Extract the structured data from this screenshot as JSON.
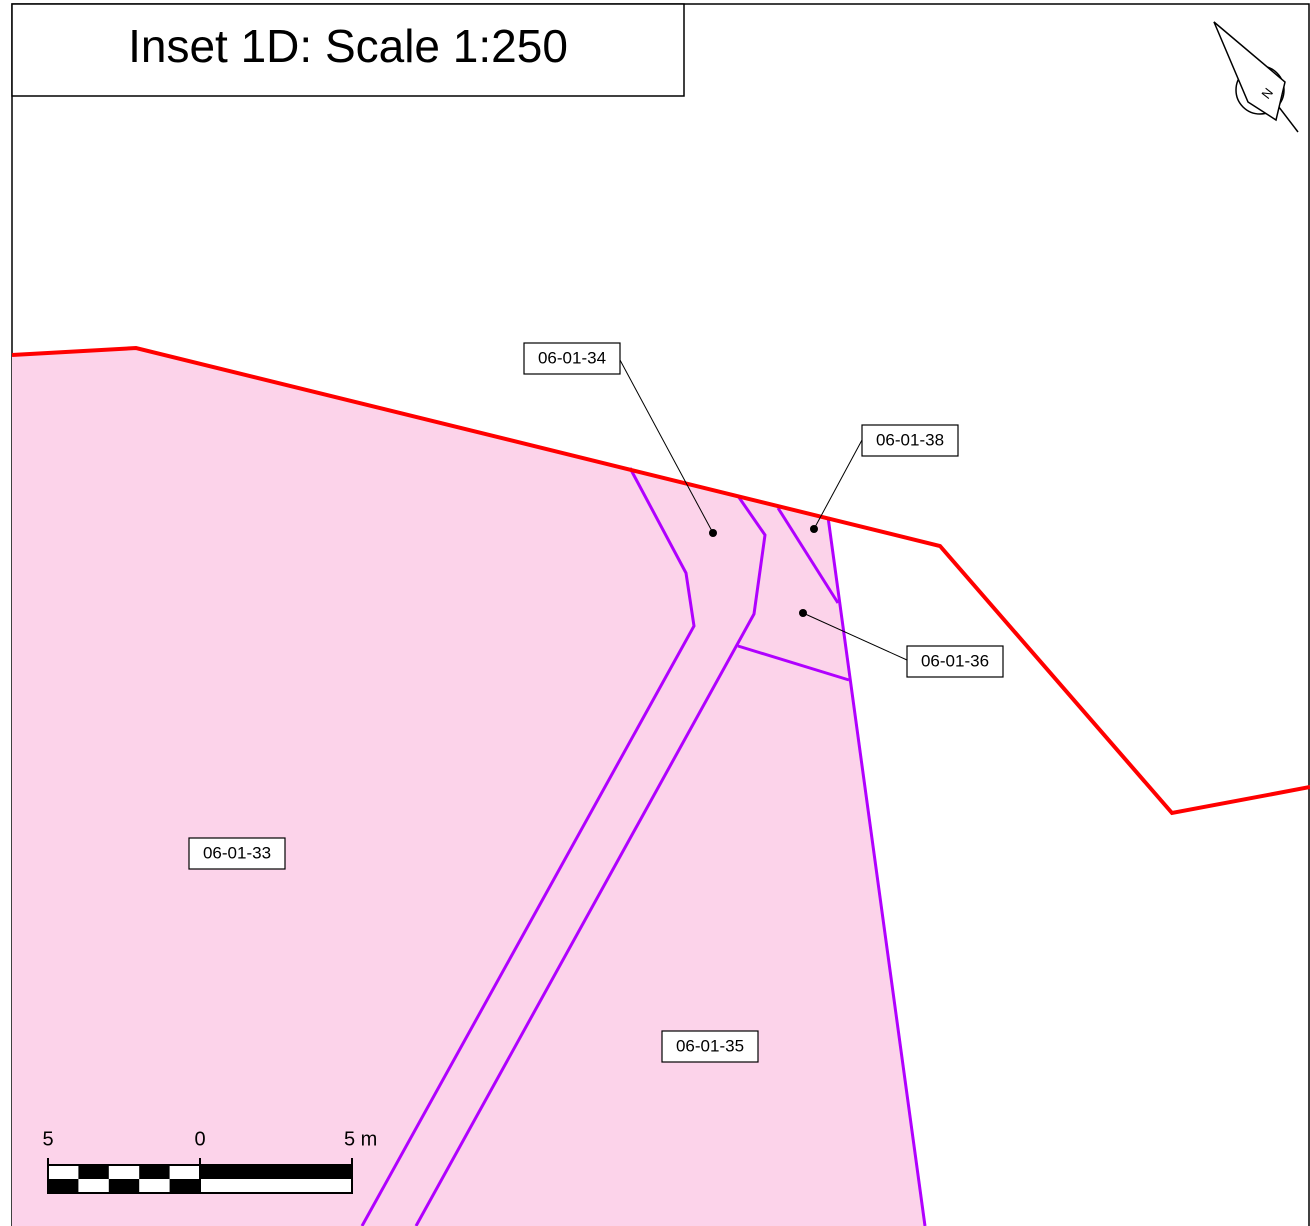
{
  "title": "Inset 1D: Scale 1:250",
  "north": "N",
  "parcels": [
    "06-01-34",
    "06-01-38",
    "06-01-36",
    "06-01-33",
    "06-01-35"
  ],
  "scale_bar": {
    "left": "5",
    "middle": "0",
    "right": "5 m"
  }
}
